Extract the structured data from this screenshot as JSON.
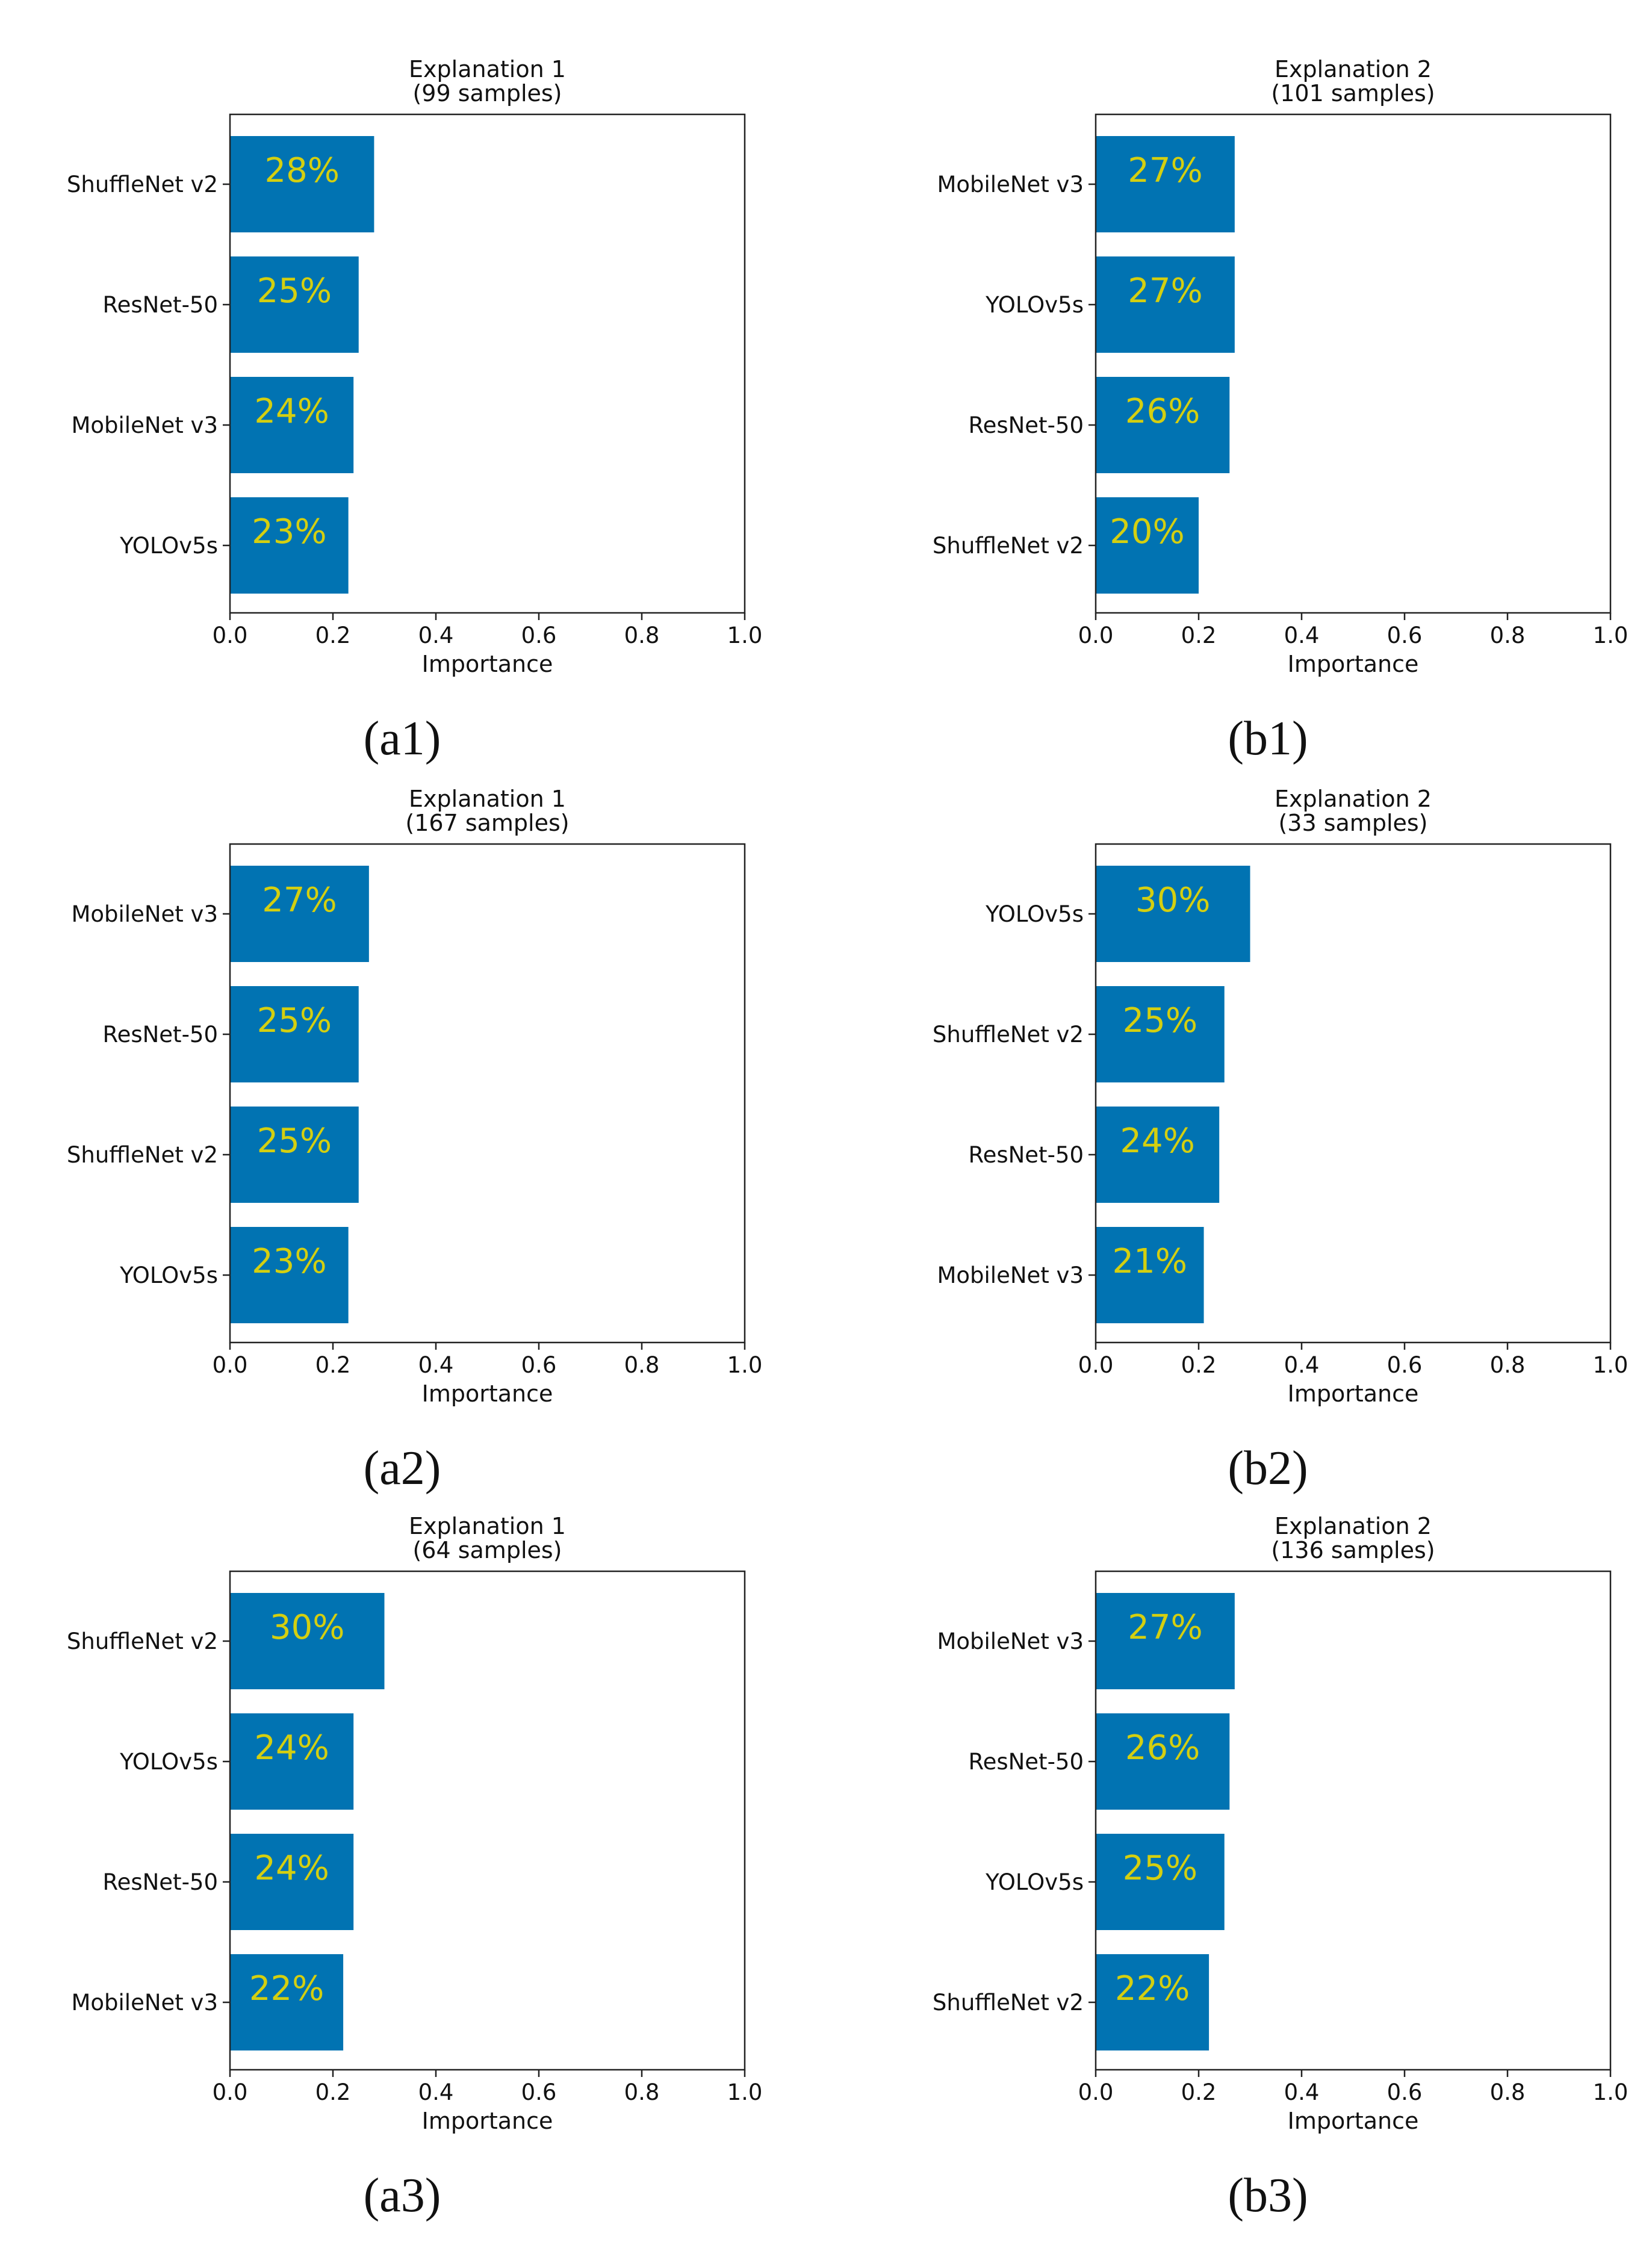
{
  "colors": {
    "bar": "#0173b2",
    "label": "#d4cf10",
    "axis": "#222222"
  },
  "chart_data": [
    {
      "type": "bar",
      "orientation": "horizontal",
      "title": [
        "Explanation 1",
        "(99 samples)"
      ],
      "caption": "(a1)",
      "categories": [
        "ShuffleNet v2",
        "ResNet-50",
        "MobileNet v3",
        "YOLOv5s"
      ],
      "values": [
        0.28,
        0.25,
        0.24,
        0.23
      ],
      "value_labels": [
        "28%",
        "25%",
        "24%",
        "23%"
      ],
      "xlabel": "Importance",
      "xlim": [
        0,
        1
      ],
      "xticks": [
        "0.0",
        "0.2",
        "0.4",
        "0.6",
        "0.8",
        "1.0"
      ],
      "grid": false
    },
    {
      "type": "bar",
      "orientation": "horizontal",
      "title": [
        "Explanation 2",
        "(101 samples)"
      ],
      "caption": "(b1)",
      "categories": [
        "MobileNet v3",
        "YOLOv5s",
        "ResNet-50",
        "ShuffleNet v2"
      ],
      "values": [
        0.27,
        0.27,
        0.26,
        0.2
      ],
      "value_labels": [
        "27%",
        "27%",
        "26%",
        "20%"
      ],
      "xlabel": "Importance",
      "xlim": [
        0,
        1
      ],
      "xticks": [
        "0.0",
        "0.2",
        "0.4",
        "0.6",
        "0.8",
        "1.0"
      ],
      "grid": false
    },
    {
      "type": "bar",
      "orientation": "horizontal",
      "title": [
        "Explanation 1",
        "(167 samples)"
      ],
      "caption": "(a2)",
      "categories": [
        "MobileNet v3",
        "ResNet-50",
        "ShuffleNet v2",
        "YOLOv5s"
      ],
      "values": [
        0.27,
        0.25,
        0.25,
        0.23
      ],
      "value_labels": [
        "27%",
        "25%",
        "25%",
        "23%"
      ],
      "xlabel": "Importance",
      "xlim": [
        0,
        1
      ],
      "xticks": [
        "0.0",
        "0.2",
        "0.4",
        "0.6",
        "0.8",
        "1.0"
      ],
      "grid": false
    },
    {
      "type": "bar",
      "orientation": "horizontal",
      "title": [
        "Explanation 2",
        "(33 samples)"
      ],
      "caption": "(b2)",
      "categories": [
        "YOLOv5s",
        "ShuffleNet v2",
        "ResNet-50",
        "MobileNet v3"
      ],
      "values": [
        0.3,
        0.25,
        0.24,
        0.21
      ],
      "value_labels": [
        "30%",
        "25%",
        "24%",
        "21%"
      ],
      "xlabel": "Importance",
      "xlim": [
        0,
        1
      ],
      "xticks": [
        "0.0",
        "0.2",
        "0.4",
        "0.6",
        "0.8",
        "1.0"
      ],
      "grid": false
    },
    {
      "type": "bar",
      "orientation": "horizontal",
      "title": [
        "Explanation 1",
        "(64 samples)"
      ],
      "caption": "(a3)",
      "categories": [
        "ShuffleNet v2",
        "YOLOv5s",
        "ResNet-50",
        "MobileNet v3"
      ],
      "values": [
        0.3,
        0.24,
        0.24,
        0.22
      ],
      "value_labels": [
        "30%",
        "24%",
        "24%",
        "22%"
      ],
      "xlabel": "Importance",
      "xlim": [
        0,
        1
      ],
      "xticks": [
        "0.0",
        "0.2",
        "0.4",
        "0.6",
        "0.8",
        "1.0"
      ],
      "grid": false
    },
    {
      "type": "bar",
      "orientation": "horizontal",
      "title": [
        "Explanation 2",
        "(136 samples)"
      ],
      "caption": "(b3)",
      "categories": [
        "MobileNet v3",
        "ResNet-50",
        "YOLOv5s",
        "ShuffleNet v2"
      ],
      "values": [
        0.27,
        0.26,
        0.25,
        0.22
      ],
      "value_labels": [
        "27%",
        "26%",
        "25%",
        "22%"
      ],
      "xlabel": "Importance",
      "xlim": [
        0,
        1
      ],
      "xticks": [
        "0.0",
        "0.2",
        "0.4",
        "0.6",
        "0.8",
        "1.0"
      ],
      "grid": false
    }
  ]
}
